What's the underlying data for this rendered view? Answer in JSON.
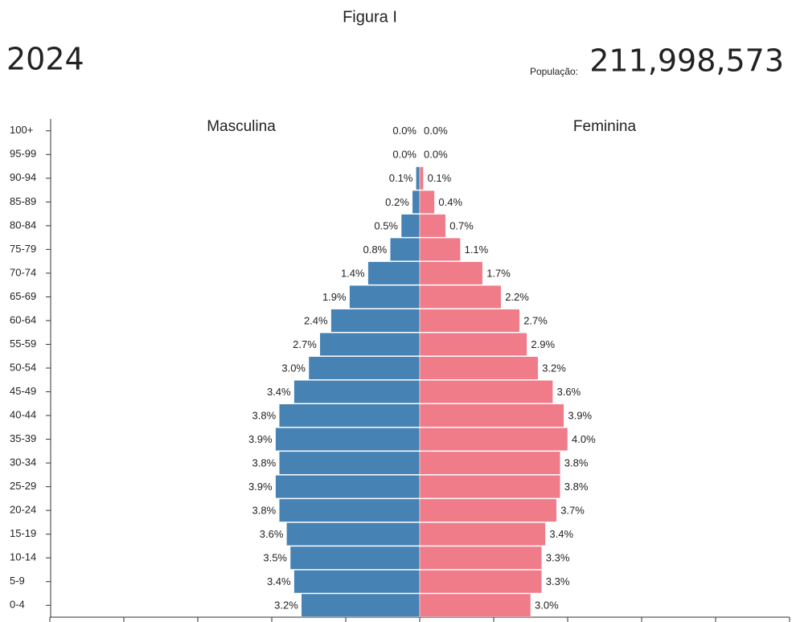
{
  "chart_data": {
    "type": "pyramid",
    "title": "Figura I",
    "year": "2024",
    "population_label": "População:",
    "population": "211,998,573",
    "categories": [
      "100+",
      "95-99",
      "90-94",
      "85-89",
      "80-84",
      "75-79",
      "70-74",
      "65-69",
      "60-64",
      "55-59",
      "50-54",
      "45-49",
      "40-44",
      "35-39",
      "30-34",
      "25-29",
      "20-24",
      "15-19",
      "10-14",
      "5-9",
      "0-4"
    ],
    "series": [
      {
        "name": "Masculina",
        "color": "#4682b4",
        "values": [
          0.0,
          0.0,
          0.1,
          0.2,
          0.5,
          0.8,
          1.4,
          1.9,
          2.4,
          2.7,
          3.0,
          3.4,
          3.8,
          3.9,
          3.8,
          3.9,
          3.8,
          3.6,
          3.5,
          3.4,
          3.2
        ],
        "value_labels": [
          "0.0%",
          "0.0%",
          "0.1%",
          "0.2%",
          "0.5%",
          "0.8%",
          "1.4%",
          "1.9%",
          "2.4%",
          "2.7%",
          "3.0%",
          "3.4%",
          "3.8%",
          "3.9%",
          "3.8%",
          "3.9%",
          "3.8%",
          "3.6%",
          "3.5%",
          "3.4%",
          "3.2%"
        ]
      },
      {
        "name": "Feminina",
        "color": "#f07c8a",
        "values": [
          0.0,
          0.0,
          0.1,
          0.4,
          0.7,
          1.1,
          1.7,
          2.2,
          2.7,
          2.9,
          3.2,
          3.6,
          3.9,
          4.0,
          3.8,
          3.8,
          3.7,
          3.4,
          3.3,
          3.3,
          3.0
        ],
        "value_labels": [
          "0.0%",
          "0.0%",
          "0.1%",
          "0.4%",
          "0.7%",
          "1.1%",
          "1.7%",
          "2.2%",
          "2.7%",
          "2.9%",
          "3.2%",
          "3.6%",
          "3.9%",
          "4.0%",
          "3.8%",
          "3.8%",
          "3.7%",
          "3.4%",
          "3.3%",
          "3.3%",
          "3.0%"
        ]
      }
    ],
    "xlim": [
      0,
      10
    ],
    "xticks": [
      0,
      2,
      4,
      6,
      8,
      10
    ]
  }
}
